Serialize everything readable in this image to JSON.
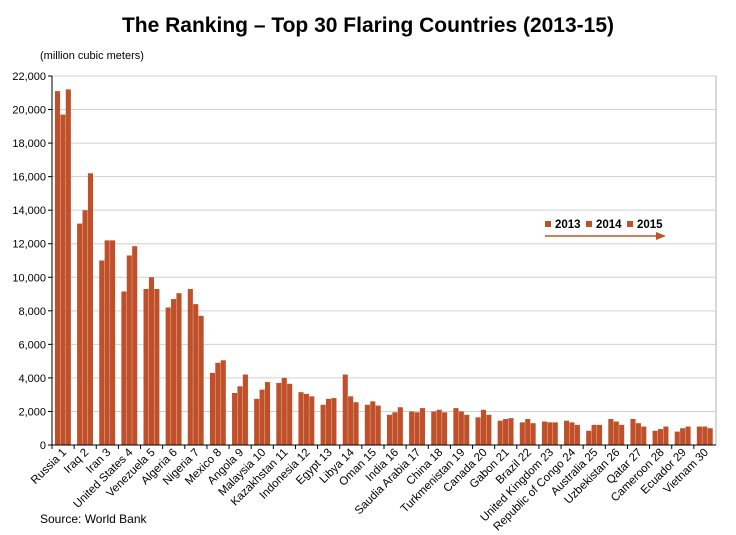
{
  "chart_data": {
    "type": "bar",
    "title": "The Ranking – Top 30 Flaring Countries (2013-15)",
    "ylabel": "(million cubic meters)",
    "source": "Source: World Bank",
    "ylim": [
      0,
      22000
    ],
    "yticks": [
      0,
      2000,
      4000,
      6000,
      8000,
      10000,
      12000,
      14000,
      16000,
      18000,
      20000,
      22000
    ],
    "ytick_labels": [
      "0",
      "2,000",
      "4,000",
      "6,000",
      "8,000",
      "10,000",
      "12,000",
      "14,000",
      "16,000",
      "18,000",
      "20,000",
      "22,000"
    ],
    "grid": true,
    "legend_position": "center-right",
    "categories": [
      "Russia 1",
      "Iraq 2",
      "Iran 3",
      "United States 4",
      "Venezuela 5",
      "Algeria 6",
      "Nigeria 7",
      "Mexico 8",
      "Angola 9",
      "Malaysia 10",
      "Kazakhstan 11",
      "Indonesia 12",
      "Egypt 13",
      "Libya 14",
      "Oman 15",
      "India 16",
      "Saudia Arabia 17",
      "China 18",
      "Turkmenistan 19",
      "Canada 20",
      "Gabon 21",
      "Brazil 22",
      "United Kingdom 23",
      "Republic of Congo 24",
      "Australia 25",
      "Uzbekistan 26",
      "Qatar 27",
      "Cameroon 28",
      "Ecuador 29",
      "Vietnam 30"
    ],
    "series": [
      {
        "name": "2013",
        "color": "#c0502a",
        "values": [
          21100,
          13200,
          11000,
          9150,
          9300,
          8200,
          9300,
          4300,
          3100,
          2750,
          3700,
          3150,
          2400,
          4200,
          2400,
          1800,
          2000,
          2000,
          2200,
          1650,
          1450,
          1350,
          1400,
          1450,
          850,
          1550,
          1550,
          850,
          800,
          1100
        ]
      },
      {
        "name": "2014",
        "color": "#c0502a",
        "values": [
          19700,
          14000,
          12200,
          11300,
          10000,
          8700,
          8400,
          4900,
          3500,
          3300,
          4000,
          3050,
          2750,
          2900,
          2600,
          1950,
          1950,
          2100,
          2000,
          2100,
          1550,
          1550,
          1350,
          1350,
          1200,
          1400,
          1300,
          950,
          1000,
          1100
        ]
      },
      {
        "name": "2015",
        "color": "#c0502a",
        "values": [
          21200,
          16200,
          12200,
          11850,
          9300,
          9050,
          7700,
          5050,
          4200,
          3750,
          3650,
          2900,
          2800,
          2550,
          2350,
          2250,
          2200,
          1950,
          1800,
          1800,
          1600,
          1300,
          1350,
          1200,
          1200,
          1200,
          1100,
          1100,
          1100,
          1000
        ]
      }
    ]
  }
}
